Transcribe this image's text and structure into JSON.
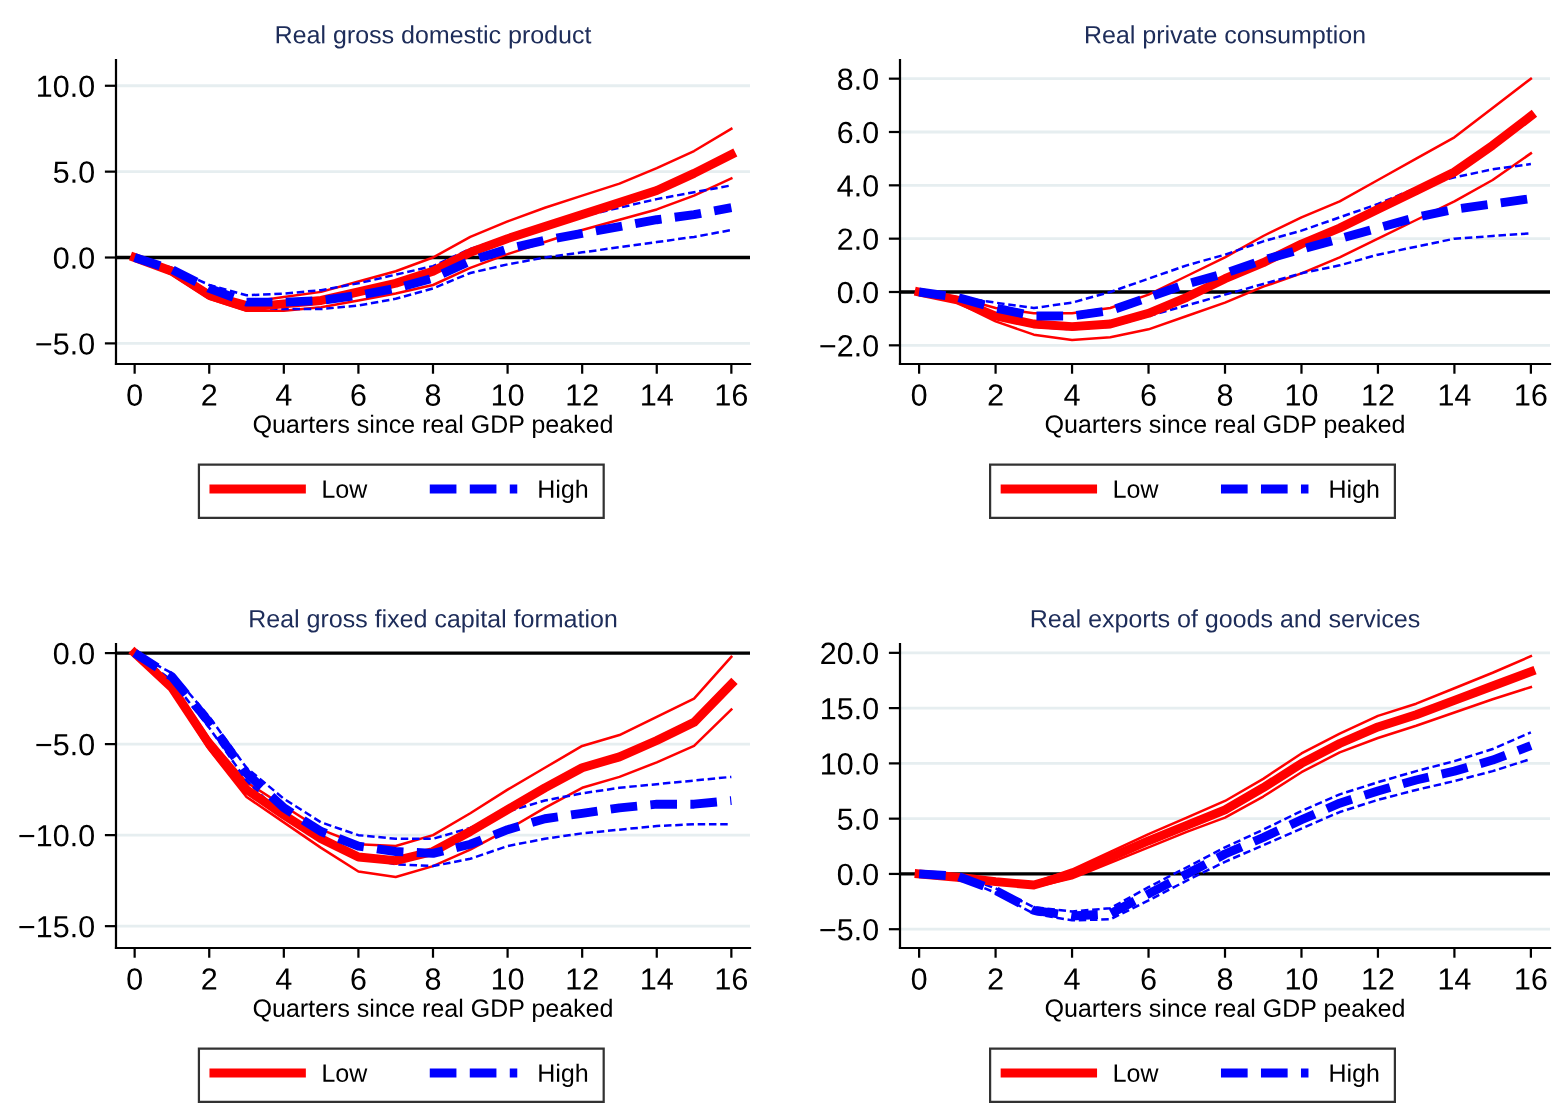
{
  "chart_data": [
    {
      "type": "line",
      "title": "Real gross domestic product",
      "xlabel": "Quarters since real GDP peaked",
      "x": [
        0,
        1,
        2,
        3,
        4,
        5,
        6,
        7,
        8,
        9,
        10,
        11,
        12,
        13,
        14,
        15,
        16
      ],
      "xlim": [
        -0.5,
        16.5
      ],
      "xticks": [
        0,
        2,
        4,
        6,
        8,
        10,
        12,
        14,
        16
      ],
      "ylim": [
        -6.2,
        11.5
      ],
      "yticks": [
        {
          "value": -5,
          "label": "−5.0"
        },
        {
          "value": 0,
          "label": "0.0"
        },
        {
          "value": 5,
          "label": "5.0"
        },
        {
          "value": 10,
          "label": "10.0"
        }
      ],
      "grid": "y",
      "legend": "bottom",
      "ref_lines": [
        {
          "axis": "y",
          "value": 0,
          "color": "#000000"
        }
      ],
      "series": [
        {
          "name": "Low",
          "color": "#ff0000",
          "line_style": "solid",
          "values": [
            0,
            -0.8,
            -2.2,
            -2.9,
            -2.7,
            -2.5,
            -2.0,
            -1.5,
            -0.8,
            0.3,
            1.1,
            1.8,
            2.5,
            3.2,
            3.9,
            4.9,
            6.0
          ]
        },
        {
          "name": "High",
          "color": "#0000ff",
          "line_style": "dashed",
          "values": [
            0,
            -0.7,
            -1.8,
            -2.6,
            -2.6,
            -2.5,
            -2.2,
            -1.8,
            -1.2,
            -0.2,
            0.5,
            1.0,
            1.4,
            1.8,
            2.2,
            2.5,
            2.9
          ]
        },
        {
          "color": "#ff0000",
          "line_style": "solid",
          "values": [
            0,
            -1.0,
            -2.4,
            -3.1,
            -3.1,
            -2.9,
            -2.5,
            -2.1,
            -1.6,
            -0.6,
            0.2,
            0.9,
            1.6,
            2.2,
            2.8,
            3.6,
            4.6
          ]
        },
        {
          "color": "#ff0000",
          "line_style": "solid",
          "values": [
            0,
            -0.7,
            -2.0,
            -2.6,
            -2.3,
            -2.0,
            -1.4,
            -0.8,
            0.0,
            1.2,
            2.1,
            2.9,
            3.6,
            4.3,
            5.2,
            6.2,
            7.5
          ]
        },
        {
          "color": "#0000ff",
          "line_style": "dashed",
          "values": [
            0,
            -0.8,
            -2.0,
            -2.9,
            -3.0,
            -3.0,
            -2.8,
            -2.4,
            -1.8,
            -0.9,
            -0.4,
            0.0,
            0.3,
            0.6,
            0.9,
            1.2,
            1.6
          ]
        },
        {
          "color": "#0000ff",
          "line_style": "dashed",
          "values": [
            0,
            -0.6,
            -1.6,
            -2.2,
            -2.1,
            -1.9,
            -1.5,
            -1.0,
            -0.5,
            0.5,
            1.2,
            1.8,
            2.4,
            2.9,
            3.4,
            3.8,
            4.2
          ]
        }
      ]
    },
    {
      "type": "line",
      "title": "Real private consumption",
      "xlabel": "Quarters since real GDP peaked",
      "x": [
        0,
        1,
        2,
        3,
        4,
        5,
        6,
        7,
        8,
        9,
        10,
        11,
        12,
        13,
        14,
        15,
        16
      ],
      "xlim": [
        -0.5,
        16.5
      ],
      "xticks": [
        0,
        2,
        4,
        6,
        8,
        10,
        12,
        14,
        16
      ],
      "ylim": [
        -2.7,
        8.7
      ],
      "yticks": [
        {
          "value": -2,
          "label": "−2.0"
        },
        {
          "value": 0,
          "label": "0.0"
        },
        {
          "value": 2,
          "label": "2.0"
        },
        {
          "value": 4,
          "label": "4.0"
        },
        {
          "value": 6,
          "label": "6.0"
        },
        {
          "value": 8,
          "label": "8.0"
        }
      ],
      "grid": "y",
      "legend": "bottom",
      "ref_lines": [
        {
          "axis": "y",
          "value": 0,
          "color": "#000000"
        }
      ],
      "series": [
        {
          "name": "Low",
          "color": "#ff0000",
          "line_style": "solid",
          "values": [
            0,
            -0.3,
            -0.9,
            -1.2,
            -1.3,
            -1.2,
            -0.8,
            -0.2,
            0.5,
            1.1,
            1.8,
            2.4,
            3.1,
            3.8,
            4.5,
            5.5,
            6.6
          ]
        },
        {
          "name": "High",
          "color": "#0000ff",
          "line_style": "dashed",
          "values": [
            0,
            -0.2,
            -0.6,
            -0.9,
            -0.9,
            -0.7,
            -0.2,
            0.3,
            0.7,
            1.2,
            1.6,
            2.0,
            2.4,
            2.8,
            3.1,
            3.3,
            3.5
          ]
        },
        {
          "color": "#ff0000",
          "line_style": "solid",
          "values": [
            0,
            -0.4,
            -1.1,
            -1.6,
            -1.8,
            -1.7,
            -1.4,
            -0.9,
            -0.4,
            0.2,
            0.7,
            1.3,
            2.0,
            2.7,
            3.4,
            4.2,
            5.2
          ]
        },
        {
          "color": "#ff0000",
          "line_style": "solid",
          "values": [
            0,
            -0.2,
            -0.6,
            -0.8,
            -0.8,
            -0.6,
            -0.1,
            0.6,
            1.3,
            2.1,
            2.8,
            3.4,
            4.2,
            5.0,
            5.8,
            6.9,
            8.0
          ]
        },
        {
          "color": "#0000ff",
          "line_style": "dashed",
          "values": [
            0,
            -0.3,
            -0.8,
            -1.3,
            -1.4,
            -1.3,
            -0.9,
            -0.5,
            -0.1,
            0.3,
            0.7,
            1.0,
            1.4,
            1.7,
            2.0,
            2.1,
            2.2
          ]
        },
        {
          "color": "#0000ff",
          "line_style": "dashed",
          "values": [
            0,
            -0.2,
            -0.4,
            -0.6,
            -0.4,
            0.0,
            0.5,
            1.0,
            1.4,
            1.9,
            2.3,
            2.8,
            3.3,
            3.9,
            4.3,
            4.6,
            4.8
          ]
        }
      ]
    },
    {
      "type": "line",
      "title": "Real gross fixed capital formation",
      "xlabel": "Quarters since real GDP peaked",
      "x": [
        0,
        1,
        2,
        3,
        4,
        5,
        6,
        7,
        8,
        9,
        10,
        11,
        12,
        13,
        14,
        15,
        16
      ],
      "xlim": [
        -0.5,
        16.5
      ],
      "xticks": [
        0,
        2,
        4,
        6,
        8,
        10,
        12,
        14,
        16
      ],
      "ylim": [
        -16.2,
        0.5
      ],
      "yticks": [
        {
          "value": -15,
          "label": "−15.0"
        },
        {
          "value": -10,
          "label": "−10.0"
        },
        {
          "value": -5,
          "label": "−5.0"
        },
        {
          "value": 0,
          "label": "0.0"
        }
      ],
      "grid": "y",
      "legend": "bottom",
      "ref_lines": [
        {
          "axis": "y",
          "value": 0,
          "color": "#000000"
        }
      ],
      "series": [
        {
          "name": "Low",
          "color": "#ff0000",
          "line_style": "solid",
          "values": [
            0,
            -1.9,
            -5.0,
            -7.5,
            -8.9,
            -10.2,
            -11.2,
            -11.4,
            -10.9,
            -9.8,
            -8.6,
            -7.4,
            -6.3,
            -5.7,
            -4.8,
            -3.8,
            -1.7
          ]
        },
        {
          "name": "High",
          "color": "#0000ff",
          "line_style": "dashed",
          "values": [
            0,
            -1.3,
            -3.8,
            -6.6,
            -8.5,
            -9.8,
            -10.6,
            -10.9,
            -11.0,
            -10.5,
            -9.7,
            -9.1,
            -8.8,
            -8.5,
            -8.3,
            -8.3,
            -8.1
          ]
        },
        {
          "color": "#ff0000",
          "line_style": "solid",
          "values": [
            0,
            -2.1,
            -5.3,
            -7.9,
            -9.3,
            -10.7,
            -12.0,
            -12.3,
            -11.7,
            -10.8,
            -9.7,
            -8.5,
            -7.4,
            -6.8,
            -6.0,
            -5.1,
            -3.1
          ]
        },
        {
          "color": "#ff0000",
          "line_style": "solid",
          "values": [
            0,
            -1.7,
            -4.7,
            -7.1,
            -8.4,
            -9.7,
            -10.5,
            -10.6,
            -10.0,
            -8.8,
            -7.5,
            -6.3,
            -5.1,
            -4.5,
            -3.5,
            -2.5,
            -0.2
          ]
        },
        {
          "color": "#0000ff",
          "line_style": "dashed",
          "values": [
            0,
            -1.5,
            -4.1,
            -7.0,
            -9.0,
            -10.3,
            -11.2,
            -11.6,
            -11.7,
            -11.3,
            -10.6,
            -10.2,
            -9.9,
            -9.7,
            -9.5,
            -9.4,
            -9.4
          ]
        },
        {
          "color": "#0000ff",
          "line_style": "dashed",
          "values": [
            0,
            -1.1,
            -3.5,
            -6.3,
            -8.0,
            -9.3,
            -10.0,
            -10.2,
            -10.2,
            -9.6,
            -8.7,
            -8.1,
            -7.7,
            -7.4,
            -7.2,
            -7.0,
            -6.8
          ]
        }
      ]
    },
    {
      "type": "line",
      "title": "Real exports of goods and services",
      "xlabel": "Quarters since real GDP peaked",
      "x": [
        0,
        1,
        2,
        3,
        4,
        5,
        6,
        7,
        8,
        9,
        10,
        11,
        12,
        13,
        14,
        15,
        16
      ],
      "xlim": [
        -0.5,
        16.5
      ],
      "xticks": [
        0,
        2,
        4,
        6,
        8,
        10,
        12,
        14,
        16
      ],
      "ylim": [
        -6.7,
        20.8
      ],
      "yticks": [
        {
          "value": -5,
          "label": "−5.0"
        },
        {
          "value": 0,
          "label": "0.0"
        },
        {
          "value": 5,
          "label": "5.0"
        },
        {
          "value": 10,
          "label": "10.0"
        },
        {
          "value": 15,
          "label": "15.0"
        },
        {
          "value": 20,
          "label": "20.0"
        }
      ],
      "grid": "y",
      "legend": "bottom",
      "ref_lines": [
        {
          "axis": "y",
          "value": 0,
          "color": "#000000"
        }
      ],
      "series": [
        {
          "name": "Low",
          "color": "#ff0000",
          "line_style": "solid",
          "values": [
            0,
            -0.3,
            -0.7,
            -1.0,
            0.0,
            1.5,
            3.0,
            4.4,
            5.8,
            7.8,
            10.0,
            11.8,
            13.3,
            14.4,
            15.7,
            17.0,
            18.3
          ]
        },
        {
          "name": "High",
          "color": "#0000ff",
          "line_style": "dashed",
          "values": [
            0,
            -0.2,
            -1.5,
            -3.3,
            -3.8,
            -3.6,
            -1.8,
            0.0,
            1.8,
            3.3,
            4.9,
            6.4,
            7.5,
            8.5,
            9.3,
            10.3,
            11.6
          ]
        },
        {
          "color": "#ff0000",
          "line_style": "solid",
          "values": [
            0,
            -0.3,
            -0.8,
            -1.2,
            -0.4,
            1.0,
            2.4,
            3.8,
            5.1,
            7.0,
            9.2,
            11.0,
            12.3,
            13.4,
            14.6,
            15.8,
            16.9
          ]
        },
        {
          "color": "#ff0000",
          "line_style": "solid",
          "values": [
            0,
            -0.2,
            -0.6,
            -0.8,
            0.4,
            2.0,
            3.6,
            5.1,
            6.6,
            8.6,
            10.9,
            12.7,
            14.3,
            15.4,
            16.8,
            18.2,
            19.7
          ]
        },
        {
          "color": "#0000ff",
          "line_style": "dashed",
          "values": [
            0,
            -0.3,
            -1.7,
            -3.6,
            -4.2,
            -4.1,
            -2.4,
            -0.6,
            1.1,
            2.6,
            4.1,
            5.6,
            6.7,
            7.6,
            8.4,
            9.3,
            10.4
          ]
        },
        {
          "color": "#0000ff",
          "line_style": "dashed",
          "values": [
            0,
            -0.1,
            -1.3,
            -3.0,
            -3.4,
            -3.1,
            -1.2,
            0.6,
            2.4,
            4.0,
            5.7,
            7.2,
            8.3,
            9.3,
            10.2,
            11.3,
            12.8
          ]
        }
      ]
    }
  ]
}
